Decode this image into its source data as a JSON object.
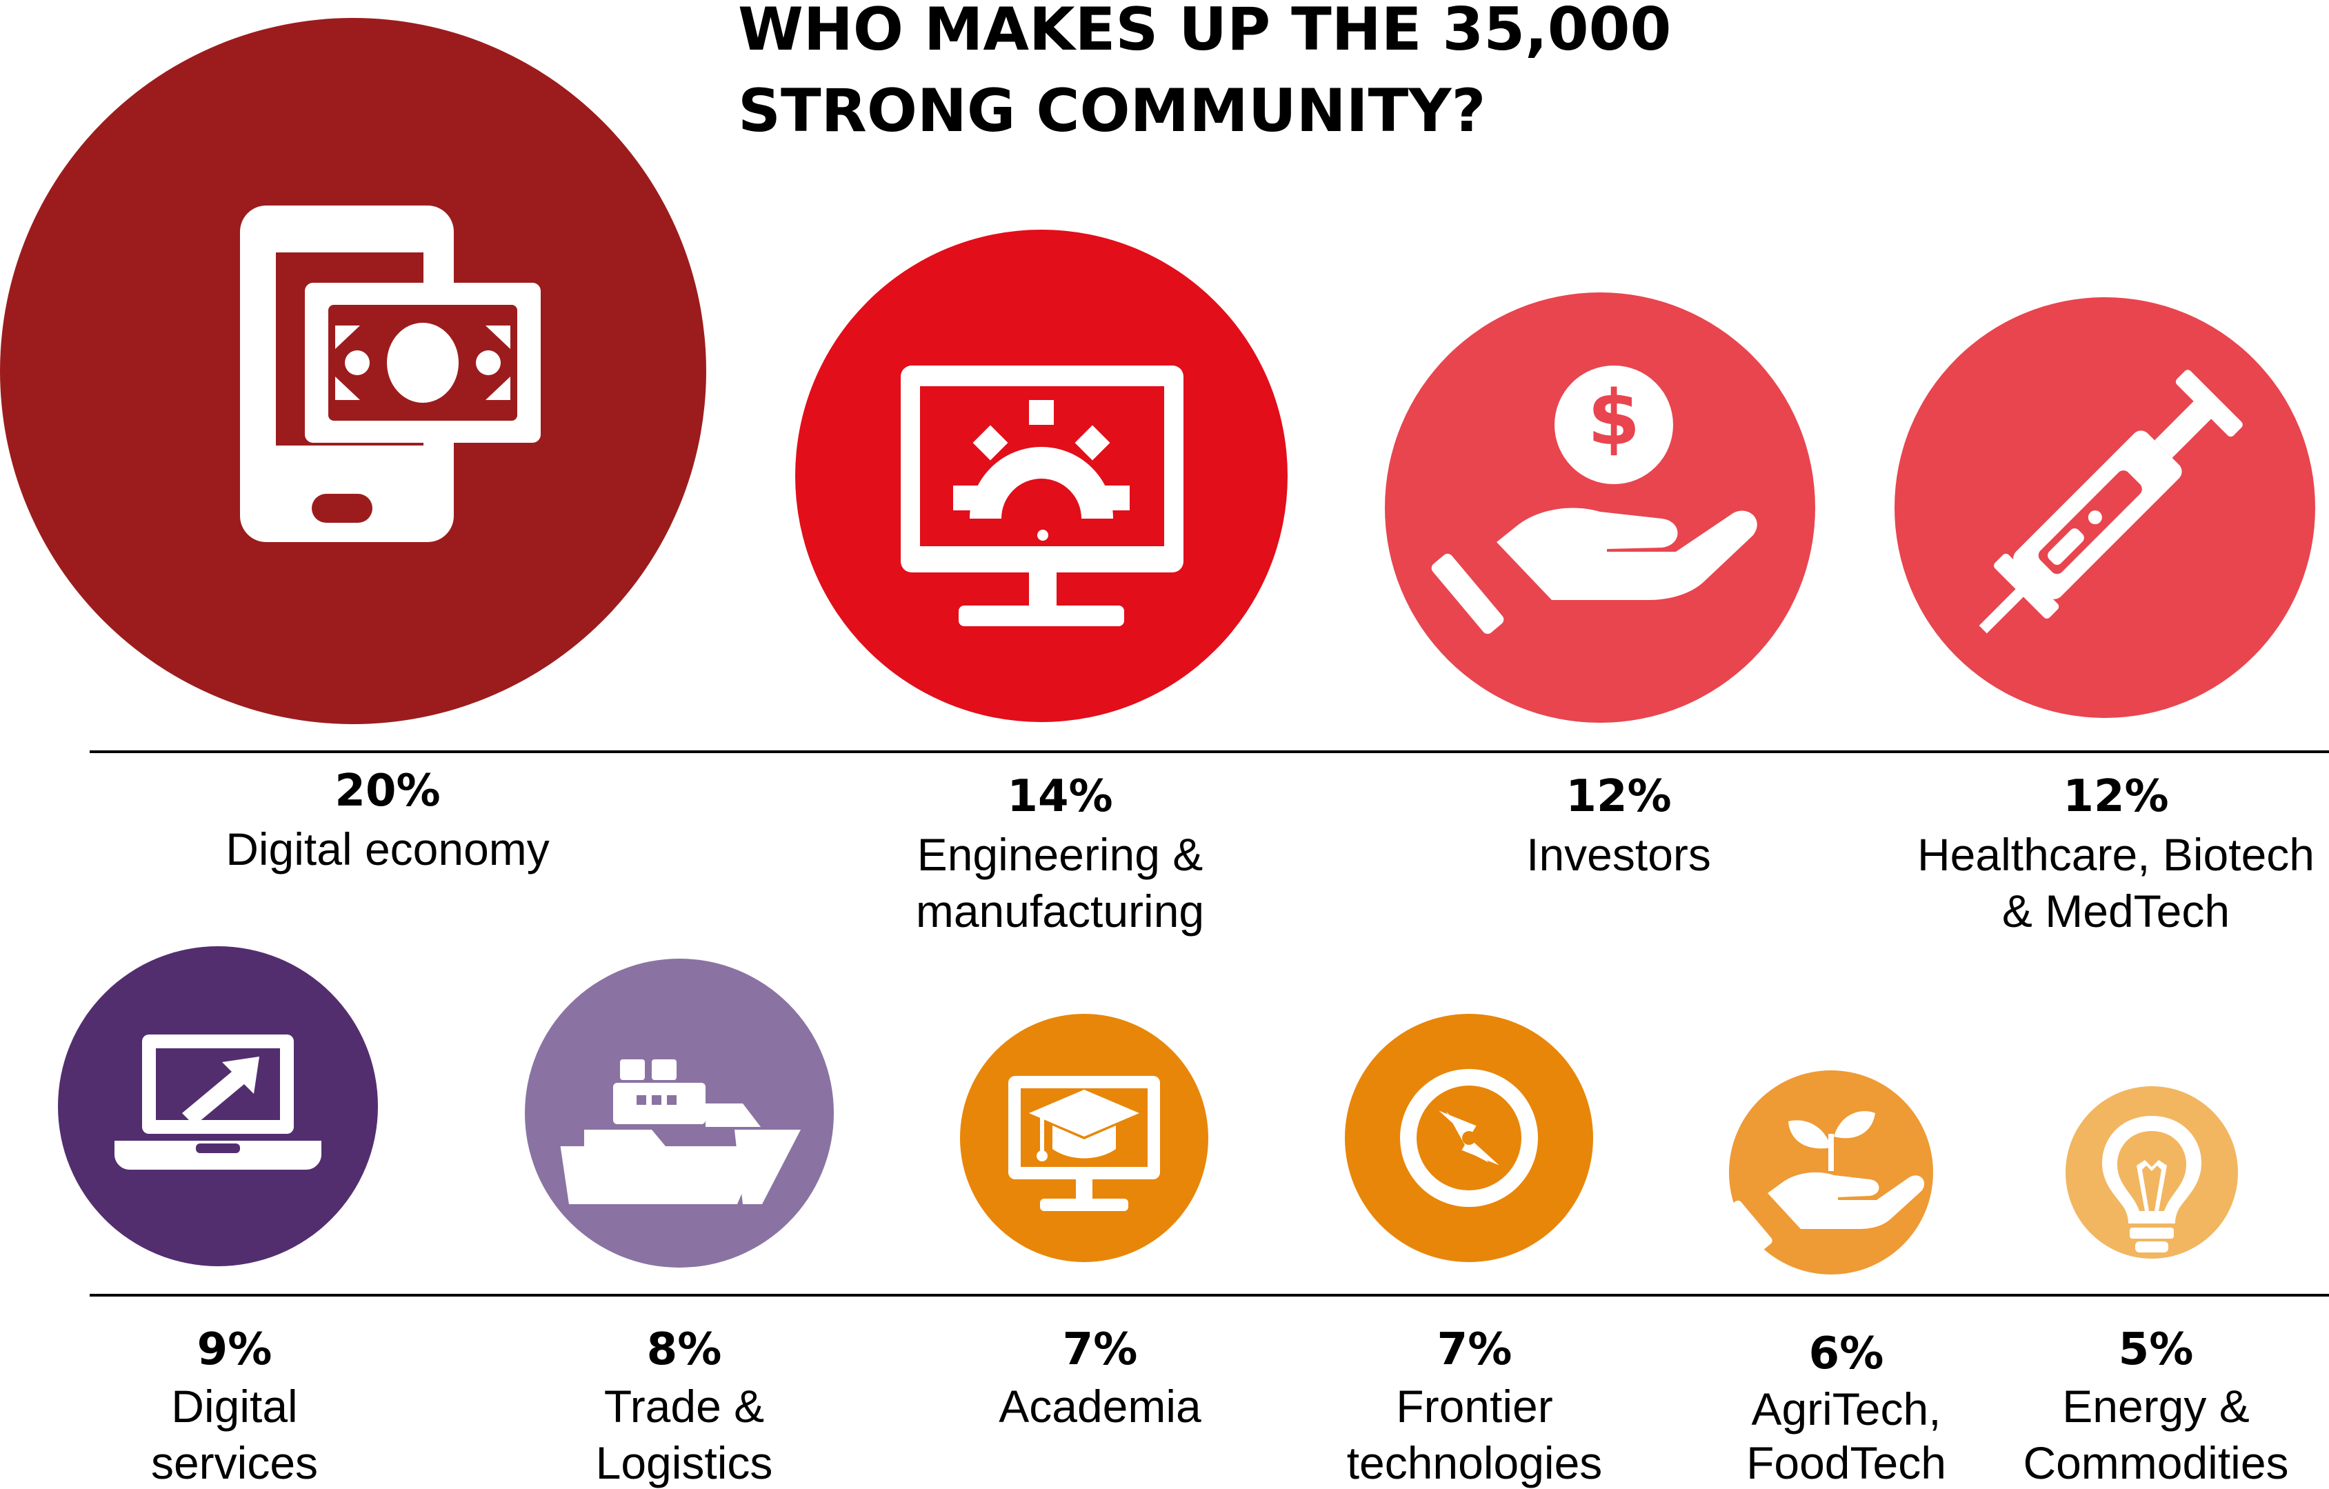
{
  "chart_data": {
    "type": "bubble",
    "title_lines": [
      "WHO MAKES UP THE 35,000",
      "STRONG COMMUNITY?"
    ],
    "items": [
      {
        "value": 20,
        "pct_label": "20%",
        "label_lines": [
          "Digital economy"
        ],
        "color": "#9C1C1D",
        "icon": "smartphone-money-icon"
      },
      {
        "value": 14,
        "pct_label": "14%",
        "label_lines": [
          "Engineering &",
          "manufacturing"
        ],
        "color": "#E20E1A",
        "icon": "monitor-gear-icon"
      },
      {
        "value": 12,
        "pct_label": "12%",
        "label_lines": [
          "Investors"
        ],
        "color": "#E8454F",
        "icon": "hand-dollar-icon"
      },
      {
        "value": 12,
        "pct_label": "12%",
        "label_lines": [
          "Healthcare, Biotech",
          "& MedTech"
        ],
        "color": "#E8454F",
        "icon": "syringe-icon"
      },
      {
        "value": 9,
        "pct_label": "9%",
        "label_lines": [
          "Digital",
          "services"
        ],
        "color": "#532E6F",
        "icon": "laptop-arrow-icon"
      },
      {
        "value": 8,
        "pct_label": "8%",
        "label_lines": [
          "Trade &",
          "Logistics"
        ],
        "color": "#8A73A2",
        "icon": "cargo-ship-icon"
      },
      {
        "value": 7,
        "pct_label": "7%",
        "label_lines": [
          "Academia"
        ],
        "color": "#E8860A",
        "icon": "monitor-graduation-cap-icon"
      },
      {
        "value": 7,
        "pct_label": "7%",
        "label_lines": [
          "Frontier",
          "technologies"
        ],
        "color": "#E8860A",
        "icon": "compass-icon"
      },
      {
        "value": 6,
        "pct_label": "6%",
        "label_lines": [
          "AgriTech,",
          "FoodTech"
        ],
        "color": "#EE9A35",
        "icon": "hand-sprout-icon"
      },
      {
        "value": 5,
        "pct_label": "5%",
        "label_lines": [
          "Energy &",
          "Commodities"
        ],
        "color": "#F2B660",
        "icon": "lightbulb-icon"
      }
    ]
  }
}
